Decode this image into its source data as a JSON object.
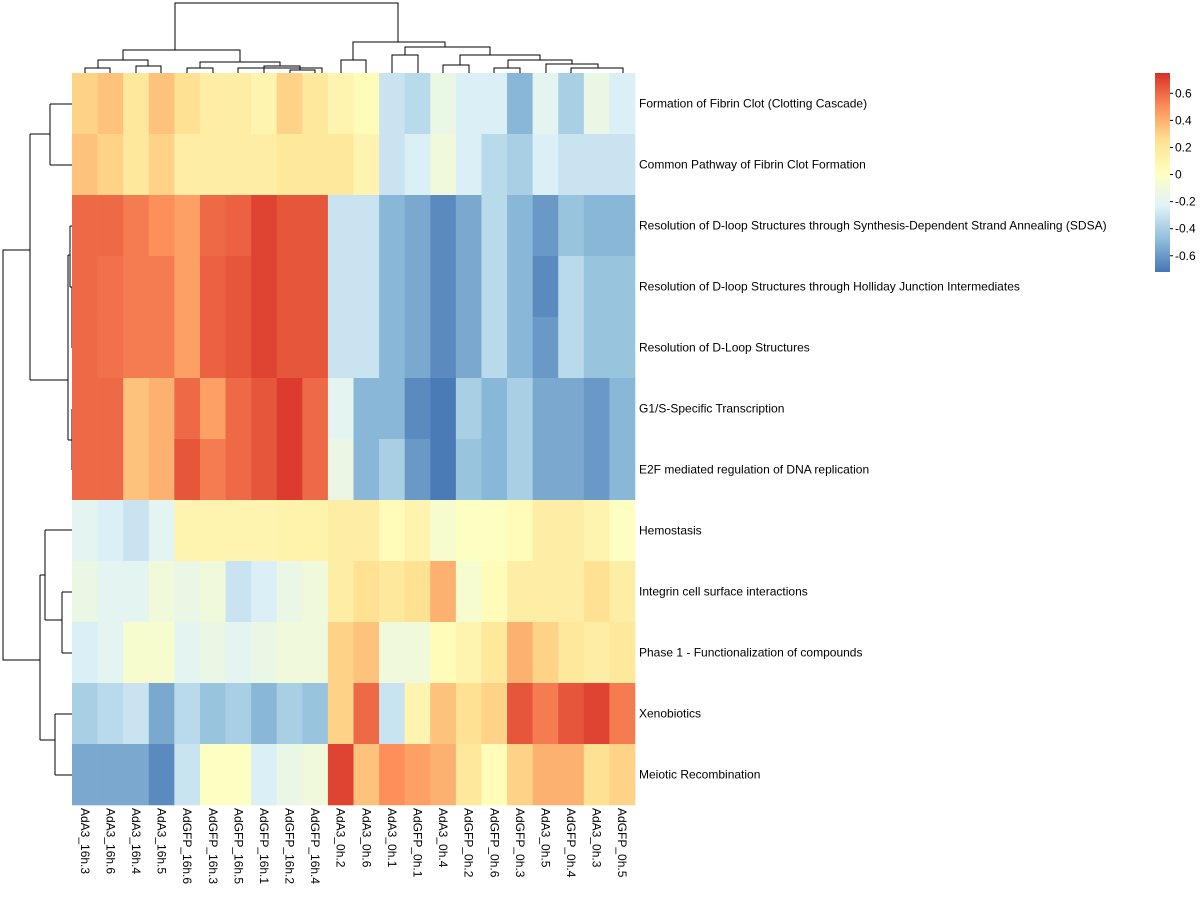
{
  "chart_data": {
    "type": "heatmap",
    "rows": [
      "Formation of Fibrin Clot (Clotting Cascade)",
      "Common Pathway of Fibrin Clot Formation",
      "Resolution of D-loop Structures through Synthesis-Dependent Strand Annealing (SDSA)",
      "Resolution of D-loop Structures through Holliday Junction Intermediates",
      "Resolution of D-Loop Structures",
      "G1/S-Specific Transcription",
      "E2F mediated regulation of DNA replication",
      "Hemostasis",
      "Integrin cell surface interactions",
      "Phase 1 - Functionalization of compounds",
      "Xenobiotics",
      "Meiotic Recombination"
    ],
    "columns": [
      "AdA3_16h.3",
      "AdA3_16h.6",
      "AdA3_16h.4",
      "AdA3_16h.5",
      "AdGFP_16h.6",
      "AdGFP_16h.3",
      "AdGFP_16h.5",
      "AdGFP_16h.1",
      "AdGFP_16h.2",
      "AdGFP_16h.4",
      "AdA3_0h.2",
      "AdA3_0h.6",
      "AdA3_0h.1",
      "AdGFP_0h.1",
      "AdA3_0h.4",
      "AdGFP_0h.2",
      "AdGFP_0h.6",
      "AdGFP_0h.3",
      "AdA3_0h.5",
      "AdGFP_0h.4",
      "AdA3_0h.3",
      "AdGFP_0h.5"
    ],
    "values": [
      [
        0.3,
        0.35,
        0.2,
        0.35,
        0.25,
        0.15,
        0.15,
        0.1,
        0.3,
        0.2,
        0.1,
        0.05,
        -0.3,
        -0.35,
        -0.15,
        -0.25,
        -0.25,
        -0.5,
        -0.2,
        -0.4,
        -0.15,
        -0.25
      ],
      [
        0.35,
        0.3,
        0.2,
        0.3,
        0.15,
        0.15,
        0.15,
        0.15,
        0.2,
        0.2,
        0.2,
        0.1,
        -0.3,
        -0.25,
        -0.1,
        -0.25,
        -0.35,
        -0.4,
        -0.25,
        -0.3,
        -0.3,
        -0.3
      ],
      [
        0.6,
        0.6,
        0.55,
        0.5,
        0.45,
        0.6,
        0.62,
        0.7,
        0.65,
        0.65,
        -0.3,
        -0.3,
        -0.5,
        -0.55,
        -0.65,
        -0.55,
        -0.35,
        -0.5,
        -0.6,
        -0.45,
        -0.5,
        -0.5
      ],
      [
        0.6,
        0.58,
        0.55,
        0.55,
        0.45,
        0.62,
        0.65,
        0.7,
        0.65,
        0.65,
        -0.3,
        -0.3,
        -0.5,
        -0.55,
        -0.65,
        -0.55,
        -0.35,
        -0.5,
        -0.65,
        -0.35,
        -0.45,
        -0.45
      ],
      [
        0.6,
        0.58,
        0.55,
        0.55,
        0.45,
        0.62,
        0.65,
        0.7,
        0.65,
        0.65,
        -0.3,
        -0.3,
        -0.5,
        -0.55,
        -0.65,
        -0.55,
        -0.35,
        -0.5,
        -0.6,
        -0.35,
        -0.45,
        -0.45
      ],
      [
        0.6,
        0.6,
        0.35,
        0.4,
        0.6,
        0.45,
        0.6,
        0.65,
        0.72,
        0.6,
        -0.2,
        -0.5,
        -0.5,
        -0.65,
        -0.7,
        -0.4,
        -0.5,
        -0.4,
        -0.55,
        -0.55,
        -0.6,
        -0.5
      ],
      [
        0.6,
        0.6,
        0.35,
        0.4,
        0.65,
        0.55,
        0.6,
        0.65,
        0.72,
        0.6,
        -0.15,
        -0.5,
        -0.4,
        -0.6,
        -0.7,
        -0.45,
        -0.5,
        -0.4,
        -0.55,
        -0.55,
        -0.6,
        -0.5
      ],
      [
        -0.2,
        -0.25,
        -0.3,
        -0.2,
        0.1,
        0.1,
        0.1,
        0.1,
        0.12,
        0.12,
        0.15,
        0.15,
        0.05,
        0.1,
        -0.05,
        0.0,
        0.0,
        0.05,
        0.15,
        0.15,
        0.1,
        0.0
      ],
      [
        -0.15,
        -0.2,
        -0.2,
        -0.1,
        -0.15,
        -0.1,
        -0.3,
        -0.25,
        -0.15,
        -0.1,
        0.15,
        0.25,
        0.2,
        0.25,
        0.4,
        -0.05,
        0.05,
        0.15,
        0.15,
        0.15,
        0.25,
        0.15
      ],
      [
        -0.25,
        -0.2,
        -0.05,
        -0.05,
        -0.2,
        -0.15,
        -0.2,
        -0.15,
        -0.1,
        -0.1,
        0.3,
        0.35,
        -0.1,
        -0.1,
        0.05,
        0.1,
        0.2,
        0.4,
        0.3,
        0.2,
        0.15,
        0.2
      ],
      [
        -0.4,
        -0.35,
        -0.3,
        -0.55,
        -0.35,
        -0.45,
        -0.4,
        -0.5,
        -0.4,
        -0.45,
        0.3,
        0.6,
        -0.3,
        0.1,
        0.35,
        0.25,
        0.3,
        0.65,
        0.55,
        0.65,
        0.7,
        0.55
      ],
      [
        -0.55,
        -0.55,
        -0.55,
        -0.65,
        -0.3,
        0.0,
        0.0,
        -0.25,
        -0.15,
        -0.1,
        0.7,
        0.35,
        0.5,
        0.45,
        0.4,
        0.2,
        0.05,
        0.3,
        0.4,
        0.4,
        0.25,
        0.3
      ]
    ],
    "colormap": [
      "#4575b4",
      "#91bfdb",
      "#e0f3f8",
      "#ffffbf",
      "#fee090",
      "#fc8d59",
      "#d73027"
    ],
    "clim": [
      -0.72,
      0.75
    ],
    "colorbar_ticks": [
      -0.6,
      -0.4,
      -0.2,
      0,
      0.2,
      0.4,
      0.6
    ]
  }
}
